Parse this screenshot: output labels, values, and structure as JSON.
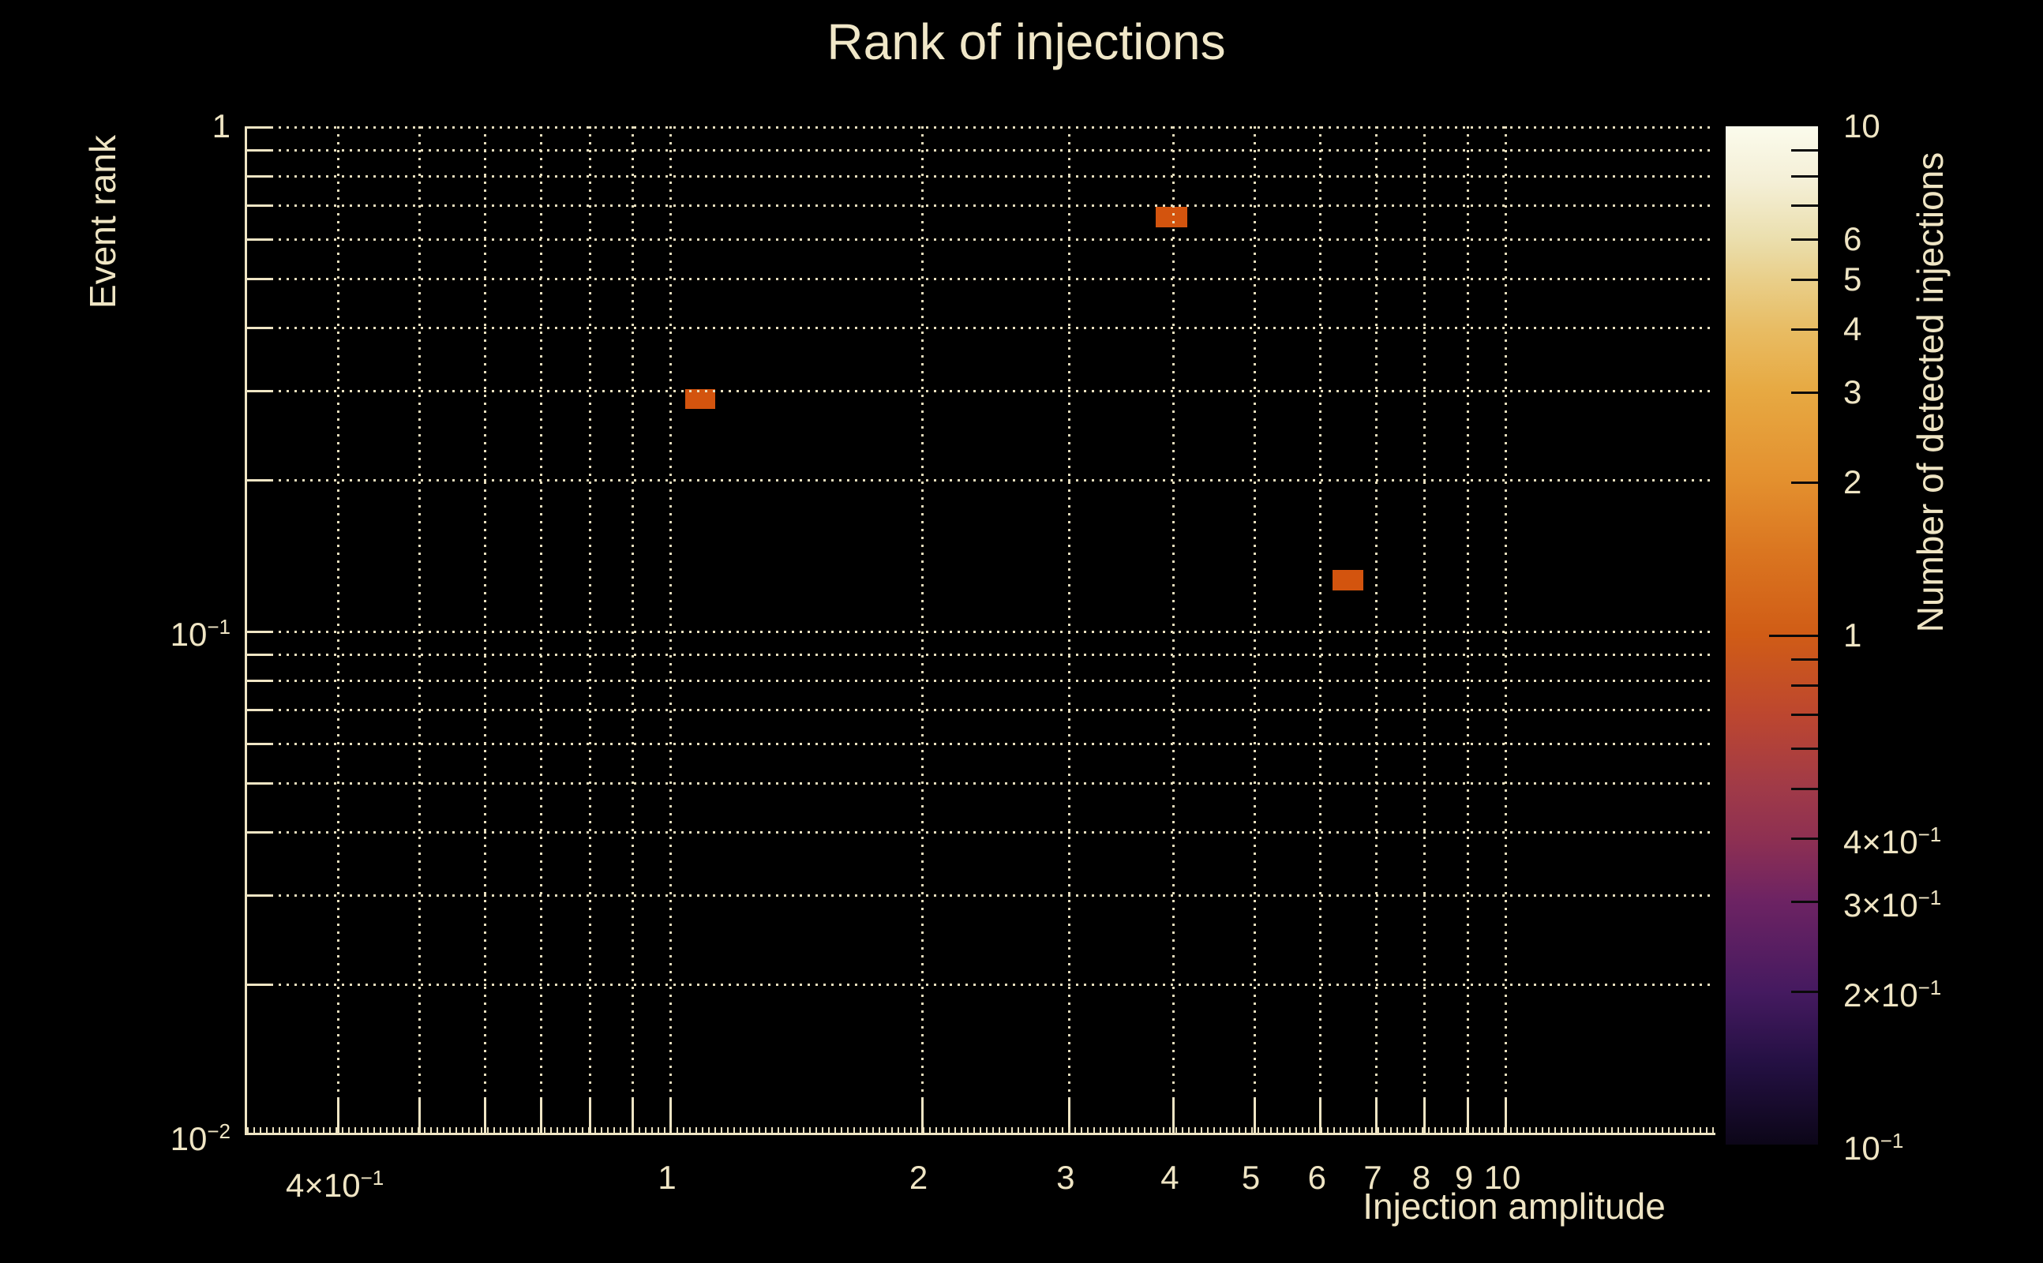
{
  "title": "Rank of injections",
  "colors": {
    "background": "#000000",
    "text": "#efe5c4",
    "grid": "#e9dfbe",
    "axis": "#efe5c4",
    "cell": "#d3540e"
  },
  "chart_data": {
    "type": "heatmap",
    "title": "Rank of injections",
    "xlabel": "Injection amplitude",
    "ylabel": "Event rank",
    "x_scale": "log",
    "y_scale": "log",
    "xlim": [
      0.312,
      18.0
    ],
    "ylim": [
      0.01,
      1.0
    ],
    "grid": true,
    "x_ticks": [
      {
        "value": 0.4,
        "label": "4×10^−1"
      },
      {
        "value": 1,
        "label": "1"
      },
      {
        "value": 2,
        "label": "2"
      },
      {
        "value": 3,
        "label": "3"
      },
      {
        "value": 4,
        "label": "4"
      },
      {
        "value": 5,
        "label": "5"
      },
      {
        "value": 6,
        "label": "6"
      },
      {
        "value": 7,
        "label": "7"
      },
      {
        "value": 8,
        "label": "8"
      },
      {
        "value": 9,
        "label": "9"
      },
      {
        "value": 10,
        "label": "10"
      }
    ],
    "y_ticks": [
      {
        "value": 1,
        "label": "1"
      },
      {
        "value": 0.1,
        "label": "10^−1"
      },
      {
        "value": 0.01,
        "label": "10^−2"
      }
    ],
    "x_gridlines": [
      0.4,
      0.5,
      0.6,
      0.7,
      0.8,
      0.9,
      1,
      2,
      3,
      4,
      5,
      6,
      7,
      8,
      9,
      10
    ],
    "y_gridlines": [
      1,
      0.9,
      0.8,
      0.7,
      0.6,
      0.5,
      0.4,
      0.3,
      0.2,
      0.1,
      0.09,
      0.08,
      0.07,
      0.06,
      0.05,
      0.04,
      0.03,
      0.02
    ],
    "cells": [
      {
        "x_low": 1.045,
        "x_high": 1.134,
        "y_low": 0.275,
        "y_high": 0.301,
        "value": 1
      },
      {
        "x_low": 3.82,
        "x_high": 4.17,
        "y_low": 0.63,
        "y_high": 0.692,
        "value": 1
      },
      {
        "x_low": 6.22,
        "x_high": 6.77,
        "y_low": 0.12,
        "y_high": 0.132,
        "value": 1
      }
    ],
    "cell_color": "#d3540e",
    "colorbar": {
      "title": "Number of detected injections",
      "scale": "log",
      "range": [
        0.1,
        10
      ],
      "labeled_ticks": [
        {
          "value": 10,
          "label": "10"
        },
        {
          "value": 6,
          "label": "6"
        },
        {
          "value": 5,
          "label": "5"
        },
        {
          "value": 4,
          "label": "4"
        },
        {
          "value": 3,
          "label": "3"
        },
        {
          "value": 2,
          "label": "2"
        },
        {
          "value": 1,
          "label": "1"
        },
        {
          "value": 0.4,
          "label": "4×10^−1"
        },
        {
          "value": 0.3,
          "label": "3×10^−1"
        },
        {
          "value": 0.2,
          "label": "2×10^−1"
        },
        {
          "value": 0.1,
          "label": "10^−1"
        }
      ],
      "major_ticks": [
        1
      ],
      "minor_ticks": [
        9,
        8,
        7,
        6,
        5,
        4,
        3,
        2,
        0.9,
        0.8,
        0.7,
        0.6,
        0.5,
        0.4,
        0.3,
        0.2
      ],
      "gradient_stops": [
        {
          "pos": 0.0,
          "color": "#fbfbec"
        },
        {
          "pos": 0.055,
          "color": "#f4efd6"
        },
        {
          "pos": 0.11,
          "color": "#ebdfae"
        },
        {
          "pos": 0.15,
          "color": "#e9cf8a"
        },
        {
          "pos": 0.2,
          "color": "#e8bc63"
        },
        {
          "pos": 0.26,
          "color": "#e7a942"
        },
        {
          "pos": 0.35,
          "color": "#e38f2e"
        },
        {
          "pos": 0.42,
          "color": "#da7520"
        },
        {
          "pos": 0.5,
          "color": "#d05c16"
        },
        {
          "pos": 0.58,
          "color": "#bc4630"
        },
        {
          "pos": 0.65,
          "color": "#a03a48"
        },
        {
          "pos": 0.7,
          "color": "#8e3052"
        },
        {
          "pos": 0.76,
          "color": "#6d2363"
        },
        {
          "pos": 0.85,
          "color": "#451a60"
        },
        {
          "pos": 0.92,
          "color": "#241043"
        },
        {
          "pos": 1.0,
          "color": "#0c0618"
        }
      ]
    }
  }
}
